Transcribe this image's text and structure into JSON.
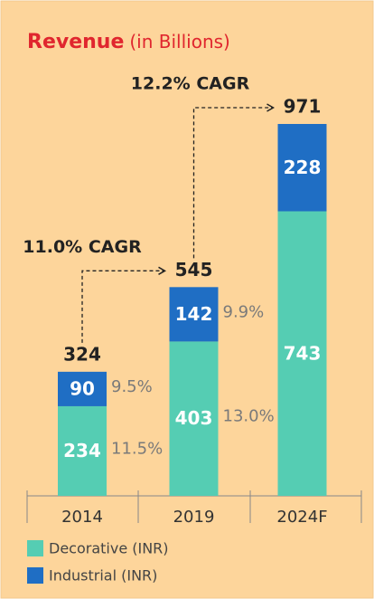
{
  "chart_data": {
    "type": "stacked_bar",
    "title": "Revenue",
    "subtitle": "(in Billions)",
    "categories": [
      "2014",
      "2019",
      "2024F"
    ],
    "series": [
      {
        "name": "Decorative (INR)",
        "color": "#55cdb3",
        "values": [
          234,
          403,
          743
        ],
        "growth_labels": [
          "11.5%",
          "13.0%",
          null
        ]
      },
      {
        "name": "Industrial (INR)",
        "color": "#1f6ec4",
        "values": [
          90,
          142,
          228
        ],
        "growth_labels": [
          "9.5%",
          "9.9%",
          null
        ]
      }
    ],
    "totals": [
      324,
      545,
      971
    ],
    "cagr_labels": [
      "11.0% CAGR",
      "12.2% CAGR"
    ]
  }
}
